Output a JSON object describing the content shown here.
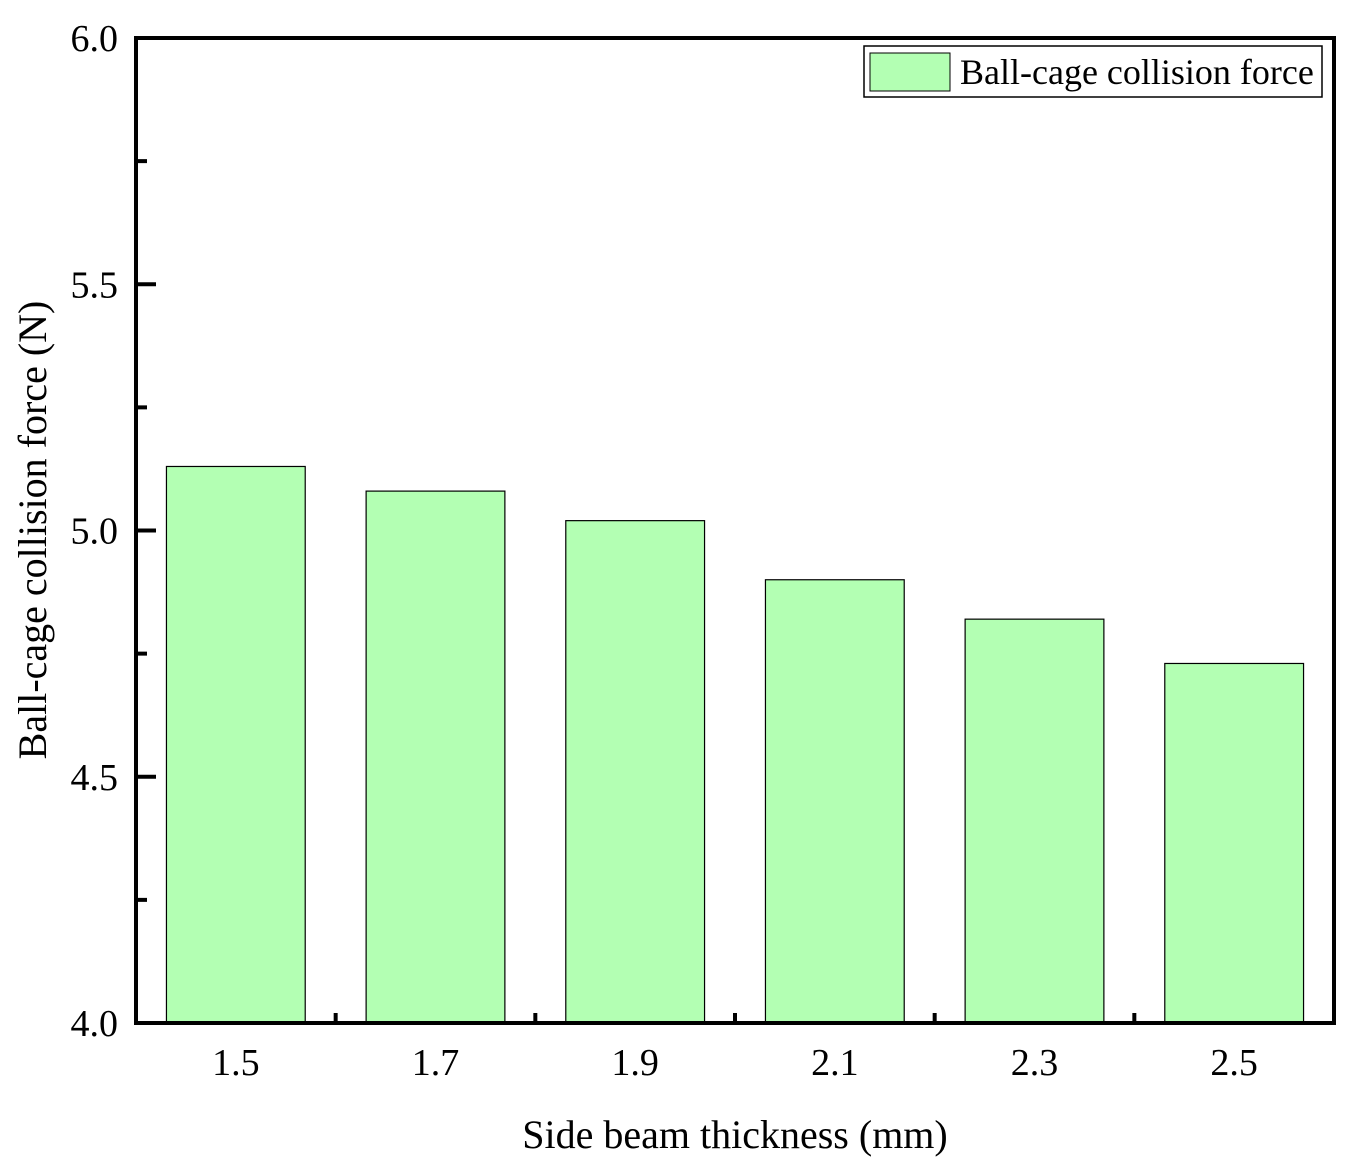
{
  "chart_data": {
    "type": "bar",
    "categories": [
      "1.5",
      "1.7",
      "1.9",
      "2.1",
      "2.3",
      "2.5"
    ],
    "series": [
      {
        "name": "Ball-cage collision force",
        "values": [
          5.13,
          5.08,
          5.02,
          4.9,
          4.82,
          4.73
        ],
        "color": "#b3ffb3"
      }
    ],
    "xlabel": "Side beam thickness (mm)",
    "ylabel": "Ball-cage collision force (N)",
    "ylim": [
      4.0,
      6.0
    ],
    "yticks": [
      "4.0",
      "4.5",
      "5.0",
      "5.5",
      "6.0"
    ],
    "grid": false,
    "legend_position": "top-right"
  }
}
